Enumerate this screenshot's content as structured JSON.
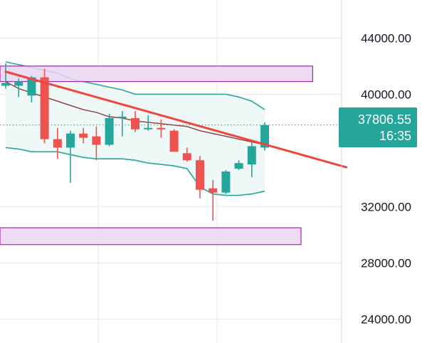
{
  "chart_data": {
    "type": "candlestick",
    "title": "",
    "xlabel": "",
    "ylabel": "",
    "ylim": [
      22300,
      46700
    ],
    "y_ticks": [
      {
        "value": 44000,
        "label": "44000.00"
      },
      {
        "value": 40000,
        "label": "40000.00"
      },
      {
        "value": 32000,
        "label": "32000.00"
      },
      {
        "value": 28000,
        "label": "28000.00"
      },
      {
        "value": 24000,
        "label": "24000.00"
      }
    ],
    "last_price": {
      "value": 37806.55,
      "label": "37806.55",
      "countdown": "16:35"
    },
    "candles": [
      {
        "o": 40600,
        "h": 42200,
        "l": 40400,
        "c": 40800
      },
      {
        "o": 40600,
        "h": 41100,
        "l": 39800,
        "c": 40900
      },
      {
        "o": 39900,
        "h": 41300,
        "l": 39400,
        "c": 41200
      },
      {
        "o": 41200,
        "h": 41800,
        "l": 36500,
        "c": 36800
      },
      {
        "o": 36800,
        "h": 37600,
        "l": 35400,
        "c": 36200
      },
      {
        "o": 36200,
        "h": 37400,
        "l": 33700,
        "c": 37200
      },
      {
        "o": 37200,
        "h": 37600,
        "l": 36500,
        "c": 36900
      },
      {
        "o": 37000,
        "h": 37700,
        "l": 35300,
        "c": 36400
      },
      {
        "o": 36400,
        "h": 38600,
        "l": 36300,
        "c": 38300
      },
      {
        "o": 38300,
        "h": 38800,
        "l": 37000,
        "c": 38400
      },
      {
        "o": 38300,
        "h": 38800,
        "l": 37300,
        "c": 37500
      },
      {
        "o": 37500,
        "h": 38500,
        "l": 37400,
        "c": 37600
      },
      {
        "o": 37600,
        "h": 38200,
        "l": 36900,
        "c": 37500
      },
      {
        "o": 37400,
        "h": 37500,
        "l": 35900,
        "c": 35900
      },
      {
        "o": 35800,
        "h": 36200,
        "l": 35200,
        "c": 35300
      },
      {
        "o": 35300,
        "h": 35600,
        "l": 32600,
        "c": 33200
      },
      {
        "o": 33300,
        "h": 33900,
        "l": 31000,
        "c": 33000
      },
      {
        "o": 33000,
        "h": 34600,
        "l": 32900,
        "c": 34500
      },
      {
        "o": 34700,
        "h": 35300,
        "l": 34600,
        "c": 35100
      },
      {
        "o": 35000,
        "h": 36700,
        "l": 34100,
        "c": 36300
      },
      {
        "o": 36200,
        "h": 38000,
        "l": 36000,
        "c": 37800
      }
    ],
    "bollinger_upper": [
      42300,
      42100,
      41900,
      41700,
      41500,
      41100,
      40900,
      40700,
      40500,
      40300,
      40000,
      40000,
      40000,
      40000,
      40000,
      40000,
      40000,
      40000,
      39800,
      39500,
      38900
    ],
    "bollinger_basis": [
      40900,
      40400,
      40100,
      39800,
      39500,
      39200,
      38900,
      38700,
      38400,
      38300,
      38100,
      38000,
      37900,
      37800,
      37700,
      37400,
      37200,
      37000,
      36800,
      36600,
      36400
    ],
    "bollinger_lower": [
      36200,
      36100,
      35900,
      35900,
      35900,
      35700,
      35500,
      35400,
      35400,
      35400,
      35300,
      35100,
      35000,
      34900,
      34700,
      33400,
      32900,
      32800,
      32800,
      32900,
      33100
    ],
    "trendline": {
      "from": {
        "index": 0,
        "price": 41600
      },
      "to": {
        "index": 26.3,
        "price": 34800
      }
    },
    "zones": [
      {
        "name": "resistance-zone",
        "from_index": -1,
        "to_index": 23.7,
        "top": 42000,
        "bottom": 40900
      },
      {
        "name": "support-zone",
        "from_index": -1,
        "to_index": 22.8,
        "top": 30500,
        "bottom": 29300
      }
    ],
    "colors": {
      "bull": "#26a69a",
      "bear": "#ef5350",
      "basis": "#8b3a3a",
      "band": "#26a69a",
      "band_fill": "#eef8f6",
      "trendline": "#f0463c",
      "zone_fill": "#ead6f2",
      "zone_border": "#9c27b0",
      "price_box": "#26a69a",
      "dotted_line": "#26a69a",
      "grid": "#e6e8ec",
      "text": "#131722"
    }
  }
}
